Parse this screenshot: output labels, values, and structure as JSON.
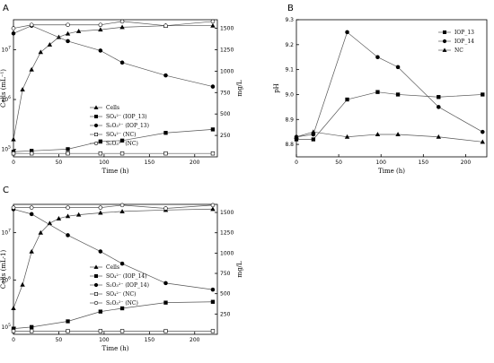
{
  "chart_data": [
    {
      "panel": "A",
      "type": "line",
      "xlabel": "Time (h)",
      "ylabel_left": "Cells (mL⁻¹)",
      "ylabel_right": "mg/L",
      "x_ticks": [
        "0",
        "50",
        "100",
        "150",
        "200"
      ],
      "y_left_ticks": [
        {
          "exp": "5"
        },
        {
          "exp": "6"
        },
        {
          "exp": "7"
        }
      ],
      "y_right_ticks": [
        "250",
        "500",
        "750",
        "1000",
        "1250",
        "1500"
      ],
      "xlim": [
        0,
        225
      ],
      "ylim_left_log10": [
        4.85,
        7.6
      ],
      "ylim_right": [
        0,
        1600
      ],
      "legend": [
        {
          "label": "Cells",
          "marker": "tri"
        },
        {
          "label": "SO₄²⁻ (IOP_13)",
          "marker": "sq"
        },
        {
          "label": "S₂O₃²⁻ (IOP_13)",
          "marker": "circ"
        },
        {
          "label": "SO₄²⁻ (NC)",
          "marker": "sq-open"
        },
        {
          "label": "S₂O₃²⁻ (NC)",
          "marker": "circ-open"
        }
      ],
      "series": [
        {
          "name": "Cells",
          "axis": "left_log",
          "marker": "tri",
          "x": [
            0,
            10,
            20,
            30,
            40,
            50,
            60,
            72,
            96,
            120,
            168,
            220
          ],
          "y": [
            5.2,
            6.2,
            6.6,
            6.95,
            7.1,
            7.25,
            7.32,
            7.37,
            7.4,
            7.45,
            7.48,
            7.48
          ]
        },
        {
          "name": "SO₄²⁻ (IOP_13)",
          "axis": "right",
          "marker": "sq",
          "x": [
            0,
            20,
            60,
            96,
            120,
            168,
            220
          ],
          "y": [
            60,
            70,
            90,
            180,
            190,
            280,
            320
          ]
        },
        {
          "name": "S₂O₃²⁻ (IOP_13)",
          "axis": "right",
          "marker": "circ",
          "x": [
            0,
            20,
            60,
            96,
            120,
            168,
            220
          ],
          "y": [
            1440,
            1530,
            1350,
            1240,
            1100,
            950,
            820
          ]
        },
        {
          "name": "SO₄²⁻ (NC)",
          "axis": "right",
          "marker": "sq-open",
          "x": [
            0,
            20,
            60,
            96,
            120,
            168,
            220
          ],
          "y": [
            40,
            40,
            40,
            40,
            40,
            40,
            40
          ]
        },
        {
          "name": "S₂O₃²⁻ (NC)",
          "axis": "right",
          "marker": "circ-open",
          "x": [
            0,
            20,
            60,
            96,
            120,
            168,
            220
          ],
          "y": [
            1500,
            1540,
            1540,
            1540,
            1580,
            1530,
            1580
          ]
        }
      ]
    },
    {
      "panel": "B",
      "type": "line",
      "xlabel": "Time (h)",
      "ylabel": "pH",
      "x_ticks": [
        "0",
        "50",
        "100",
        "150",
        "200"
      ],
      "y_ticks": [
        "8.8",
        "8.9",
        "9.0",
        "9.1",
        "9.2",
        "9.3"
      ],
      "xlim": [
        0,
        225
      ],
      "ylim": [
        8.75,
        9.3
      ],
      "legend": [
        {
          "label": "IOP_13",
          "marker": "sq"
        },
        {
          "label": "IOP_14",
          "marker": "circ"
        },
        {
          "label": "NC",
          "marker": "tri"
        }
      ],
      "series": [
        {
          "name": "IOP_13",
          "marker": "sq",
          "x": [
            0,
            20,
            60,
            96,
            120,
            168,
            220
          ],
          "y": [
            8.82,
            8.82,
            8.98,
            9.01,
            9.0,
            8.99,
            9.0
          ]
        },
        {
          "name": "IOP_14",
          "marker": "circ",
          "x": [
            0,
            20,
            60,
            96,
            120,
            168,
            220
          ],
          "y": [
            8.83,
            8.84,
            9.25,
            9.15,
            9.11,
            8.95,
            8.85
          ]
        },
        {
          "name": "NC",
          "marker": "tri",
          "x": [
            0,
            20,
            60,
            96,
            120,
            168,
            220
          ],
          "y": [
            8.83,
            8.85,
            8.83,
            8.84,
            8.84,
            8.83,
            8.81
          ]
        }
      ]
    },
    {
      "panel": "C",
      "type": "line",
      "xlabel": "Time (h)",
      "ylabel_left": "Cells (mL-1)",
      "ylabel_right": "mg/L",
      "x_ticks": [
        "0",
        "50",
        "100",
        "150",
        "200"
      ],
      "y_left_ticks": [
        {
          "exp": "5"
        },
        {
          "exp": "6"
        },
        {
          "exp": "7"
        }
      ],
      "y_right_ticks": [
        "250",
        "500",
        "750",
        "1000",
        "1250",
        "1500"
      ],
      "xlim": [
        0,
        225
      ],
      "ylim_left_log10": [
        4.85,
        7.6
      ],
      "ylim_right": [
        0,
        1600
      ],
      "legend": [
        {
          "label": "Cells",
          "marker": "tri"
        },
        {
          "label": "SO₄²⁻ (IOP_14)",
          "marker": "sq"
        },
        {
          "label": "S₂O₃²⁻ (IOP_14)",
          "marker": "circ"
        },
        {
          "label": "SO₄²⁻ (NC)",
          "marker": "sq-open"
        },
        {
          "label": "S₂O₃²⁻ (NC)",
          "marker": "circ-open"
        }
      ],
      "series": [
        {
          "name": "Cells",
          "axis": "left_log",
          "marker": "tri",
          "x": [
            0,
            10,
            20,
            30,
            40,
            50,
            60,
            72,
            96,
            120,
            168,
            220
          ],
          "y": [
            5.4,
            5.9,
            6.6,
            7.0,
            7.2,
            7.3,
            7.35,
            7.38,
            7.42,
            7.45,
            7.48,
            7.5
          ]
        },
        {
          "name": "SO₄²⁻ (IOP_14)",
          "axis": "right",
          "marker": "sq",
          "x": [
            0,
            20,
            60,
            96,
            120,
            168,
            220
          ],
          "y": [
            70,
            90,
            160,
            280,
            320,
            390,
            400
          ]
        },
        {
          "name": "S₂O₃²⁻ (IOP_14)",
          "axis": "right",
          "marker": "circ",
          "x": [
            0,
            20,
            60,
            96,
            120,
            168,
            220
          ],
          "y": [
            1540,
            1480,
            1220,
            1020,
            870,
            630,
            550
          ]
        },
        {
          "name": "SO₄²⁻ (NC)",
          "axis": "right",
          "marker": "sq-open",
          "x": [
            0,
            20,
            60,
            96,
            120,
            168,
            220
          ],
          "y": [
            40,
            40,
            40,
            40,
            40,
            40,
            40
          ]
        },
        {
          "name": "S₂O₃²⁻ (NC)",
          "axis": "right",
          "marker": "circ-open",
          "x": [
            0,
            20,
            60,
            96,
            120,
            168,
            220
          ],
          "y": [
            1560,
            1560,
            1560,
            1560,
            1590,
            1550,
            1590
          ]
        }
      ]
    }
  ]
}
